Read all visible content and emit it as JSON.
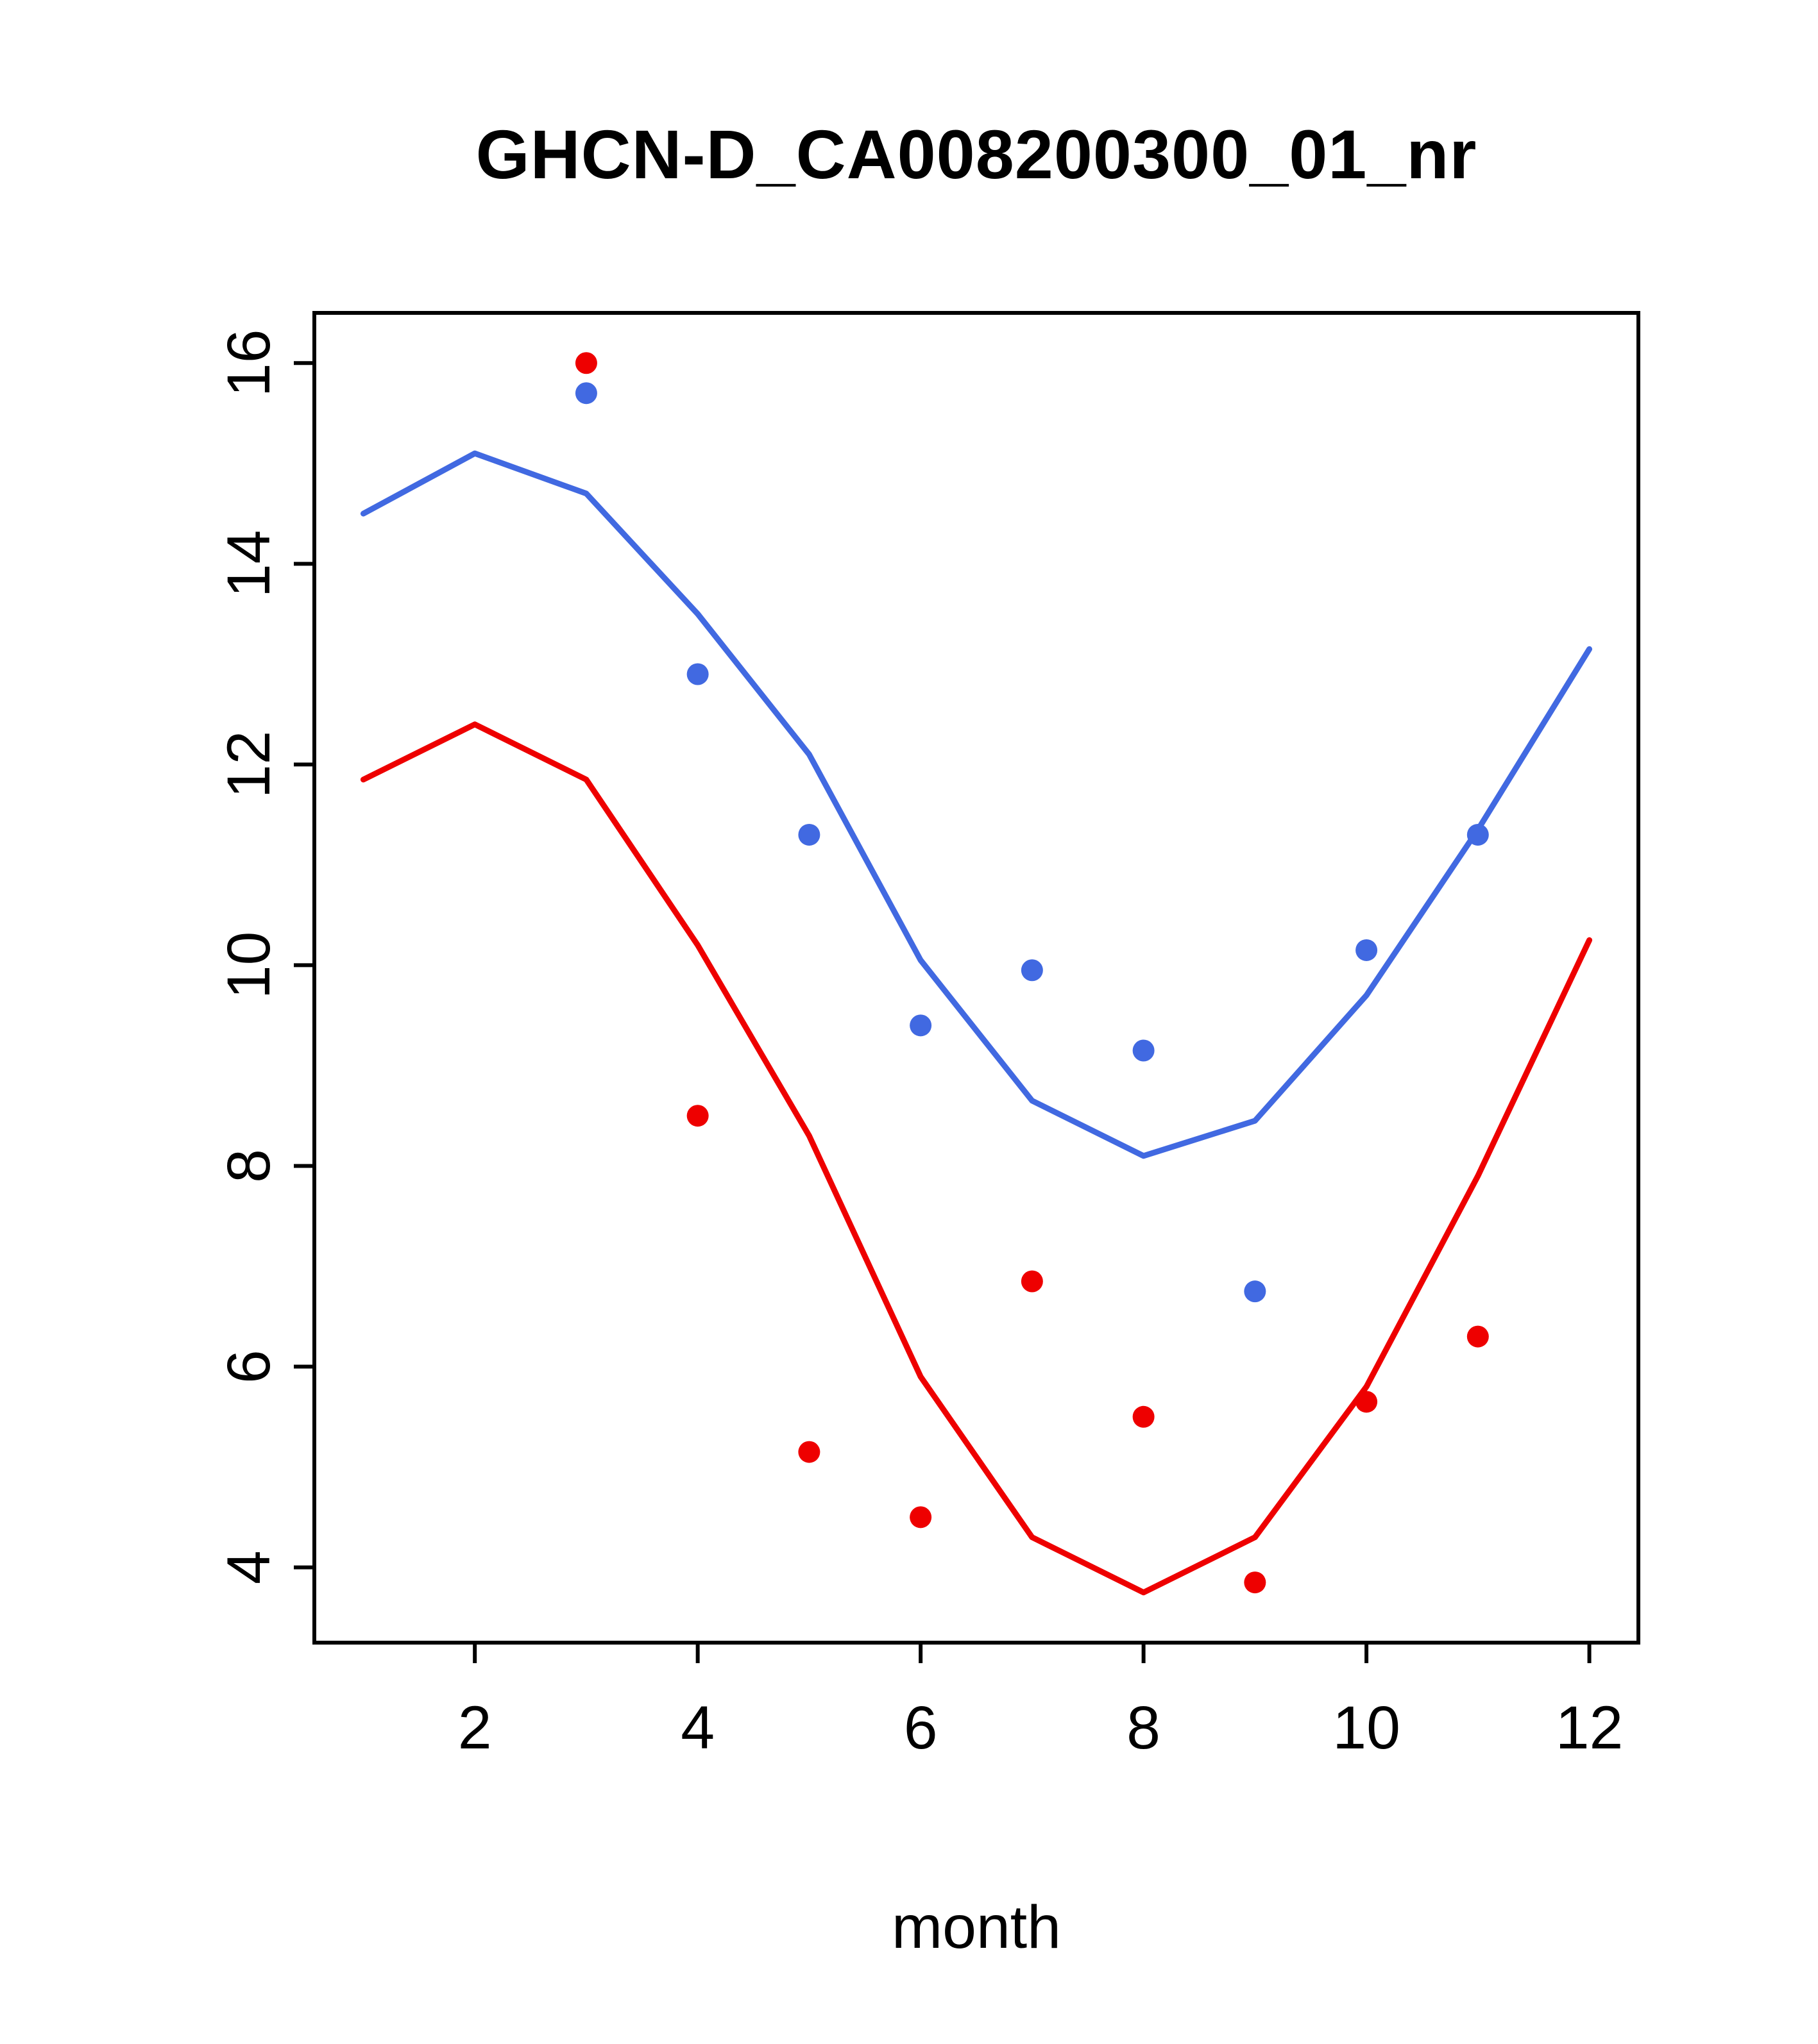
{
  "title": "GHCN-D_CA008200300_01_nr",
  "chart_data": {
    "type": "line",
    "title": "GHCN-D_CA008200300_01_nr",
    "xlabel": "month",
    "ylabel": "",
    "xlim": [
      0.56,
      12.44
    ],
    "ylim": [
      3.25,
      16.5
    ],
    "xticks": [
      2,
      4,
      6,
      8,
      10,
      12
    ],
    "yticks": [
      4,
      6,
      8,
      10,
      12,
      14,
      16
    ],
    "grid": false,
    "legend": "none",
    "colors": {
      "blue": "#4169E1",
      "red": "#EE0000"
    },
    "series": [
      {
        "name": "blue-line",
        "kind": "line",
        "color": "#4169E1",
        "x": [
          1,
          2,
          3,
          4,
          5,
          6,
          7,
          8,
          9,
          10,
          11,
          12
        ],
        "y": [
          14.5,
          15.1,
          14.7,
          13.5,
          12.1,
          10.05,
          8.65,
          8.1,
          8.45,
          9.7,
          11.35,
          13.15
        ]
      },
      {
        "name": "red-line",
        "kind": "line",
        "color": "#EE0000",
        "x": [
          1,
          2,
          3,
          4,
          5,
          6,
          7,
          8,
          9,
          10,
          11,
          12
        ],
        "y": [
          11.85,
          12.4,
          11.85,
          10.2,
          8.3,
          5.9,
          4.3,
          3.75,
          4.3,
          5.8,
          7.9,
          10.25
        ]
      },
      {
        "name": "blue-points",
        "kind": "scatter",
        "color": "#4169E1",
        "x": [
          3,
          4,
          5,
          6,
          7,
          8,
          9,
          10,
          11
        ],
        "y": [
          15.7,
          12.9,
          11.3,
          9.4,
          9.95,
          9.15,
          6.75,
          10.15,
          11.3
        ]
      },
      {
        "name": "red-points",
        "kind": "scatter",
        "color": "#EE0000",
        "x": [
          3,
          4,
          5,
          6,
          7,
          8,
          9,
          10,
          11
        ],
        "y": [
          16.0,
          8.5,
          5.15,
          4.5,
          6.85,
          5.5,
          3.85,
          5.65,
          6.3
        ]
      }
    ]
  }
}
